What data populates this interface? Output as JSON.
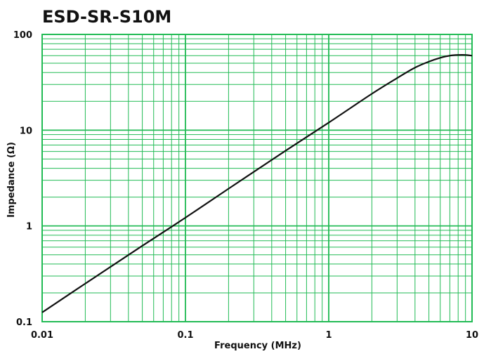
{
  "chart_data": {
    "type": "line",
    "title": "ESD-SR-S10M",
    "xlabel": "Frequency (MHz)",
    "ylabel": "Impedance (Ω)",
    "x_scale": "log",
    "y_scale": "log",
    "xlim": [
      0.01,
      10
    ],
    "ylim": [
      0.1,
      100
    ],
    "x_ticks": [
      "0.01",
      "0.1",
      "1",
      "10"
    ],
    "y_ticks": [
      "0.1",
      "1",
      "10",
      "100"
    ],
    "grid": true,
    "grid_color": "#22bb55",
    "line_color": "#111111",
    "series": [
      {
        "x": [
          0.01,
          0.02,
          0.05,
          0.1,
          0.2,
          0.5,
          1,
          2,
          3,
          4,
          5,
          6,
          7,
          8,
          9,
          10
        ],
        "values": [
          0.125,
          0.25,
          0.62,
          1.22,
          2.45,
          6.1,
          12,
          24,
          35,
          45,
          52,
          57,
          60,
          61,
          61,
          60
        ]
      }
    ]
  }
}
